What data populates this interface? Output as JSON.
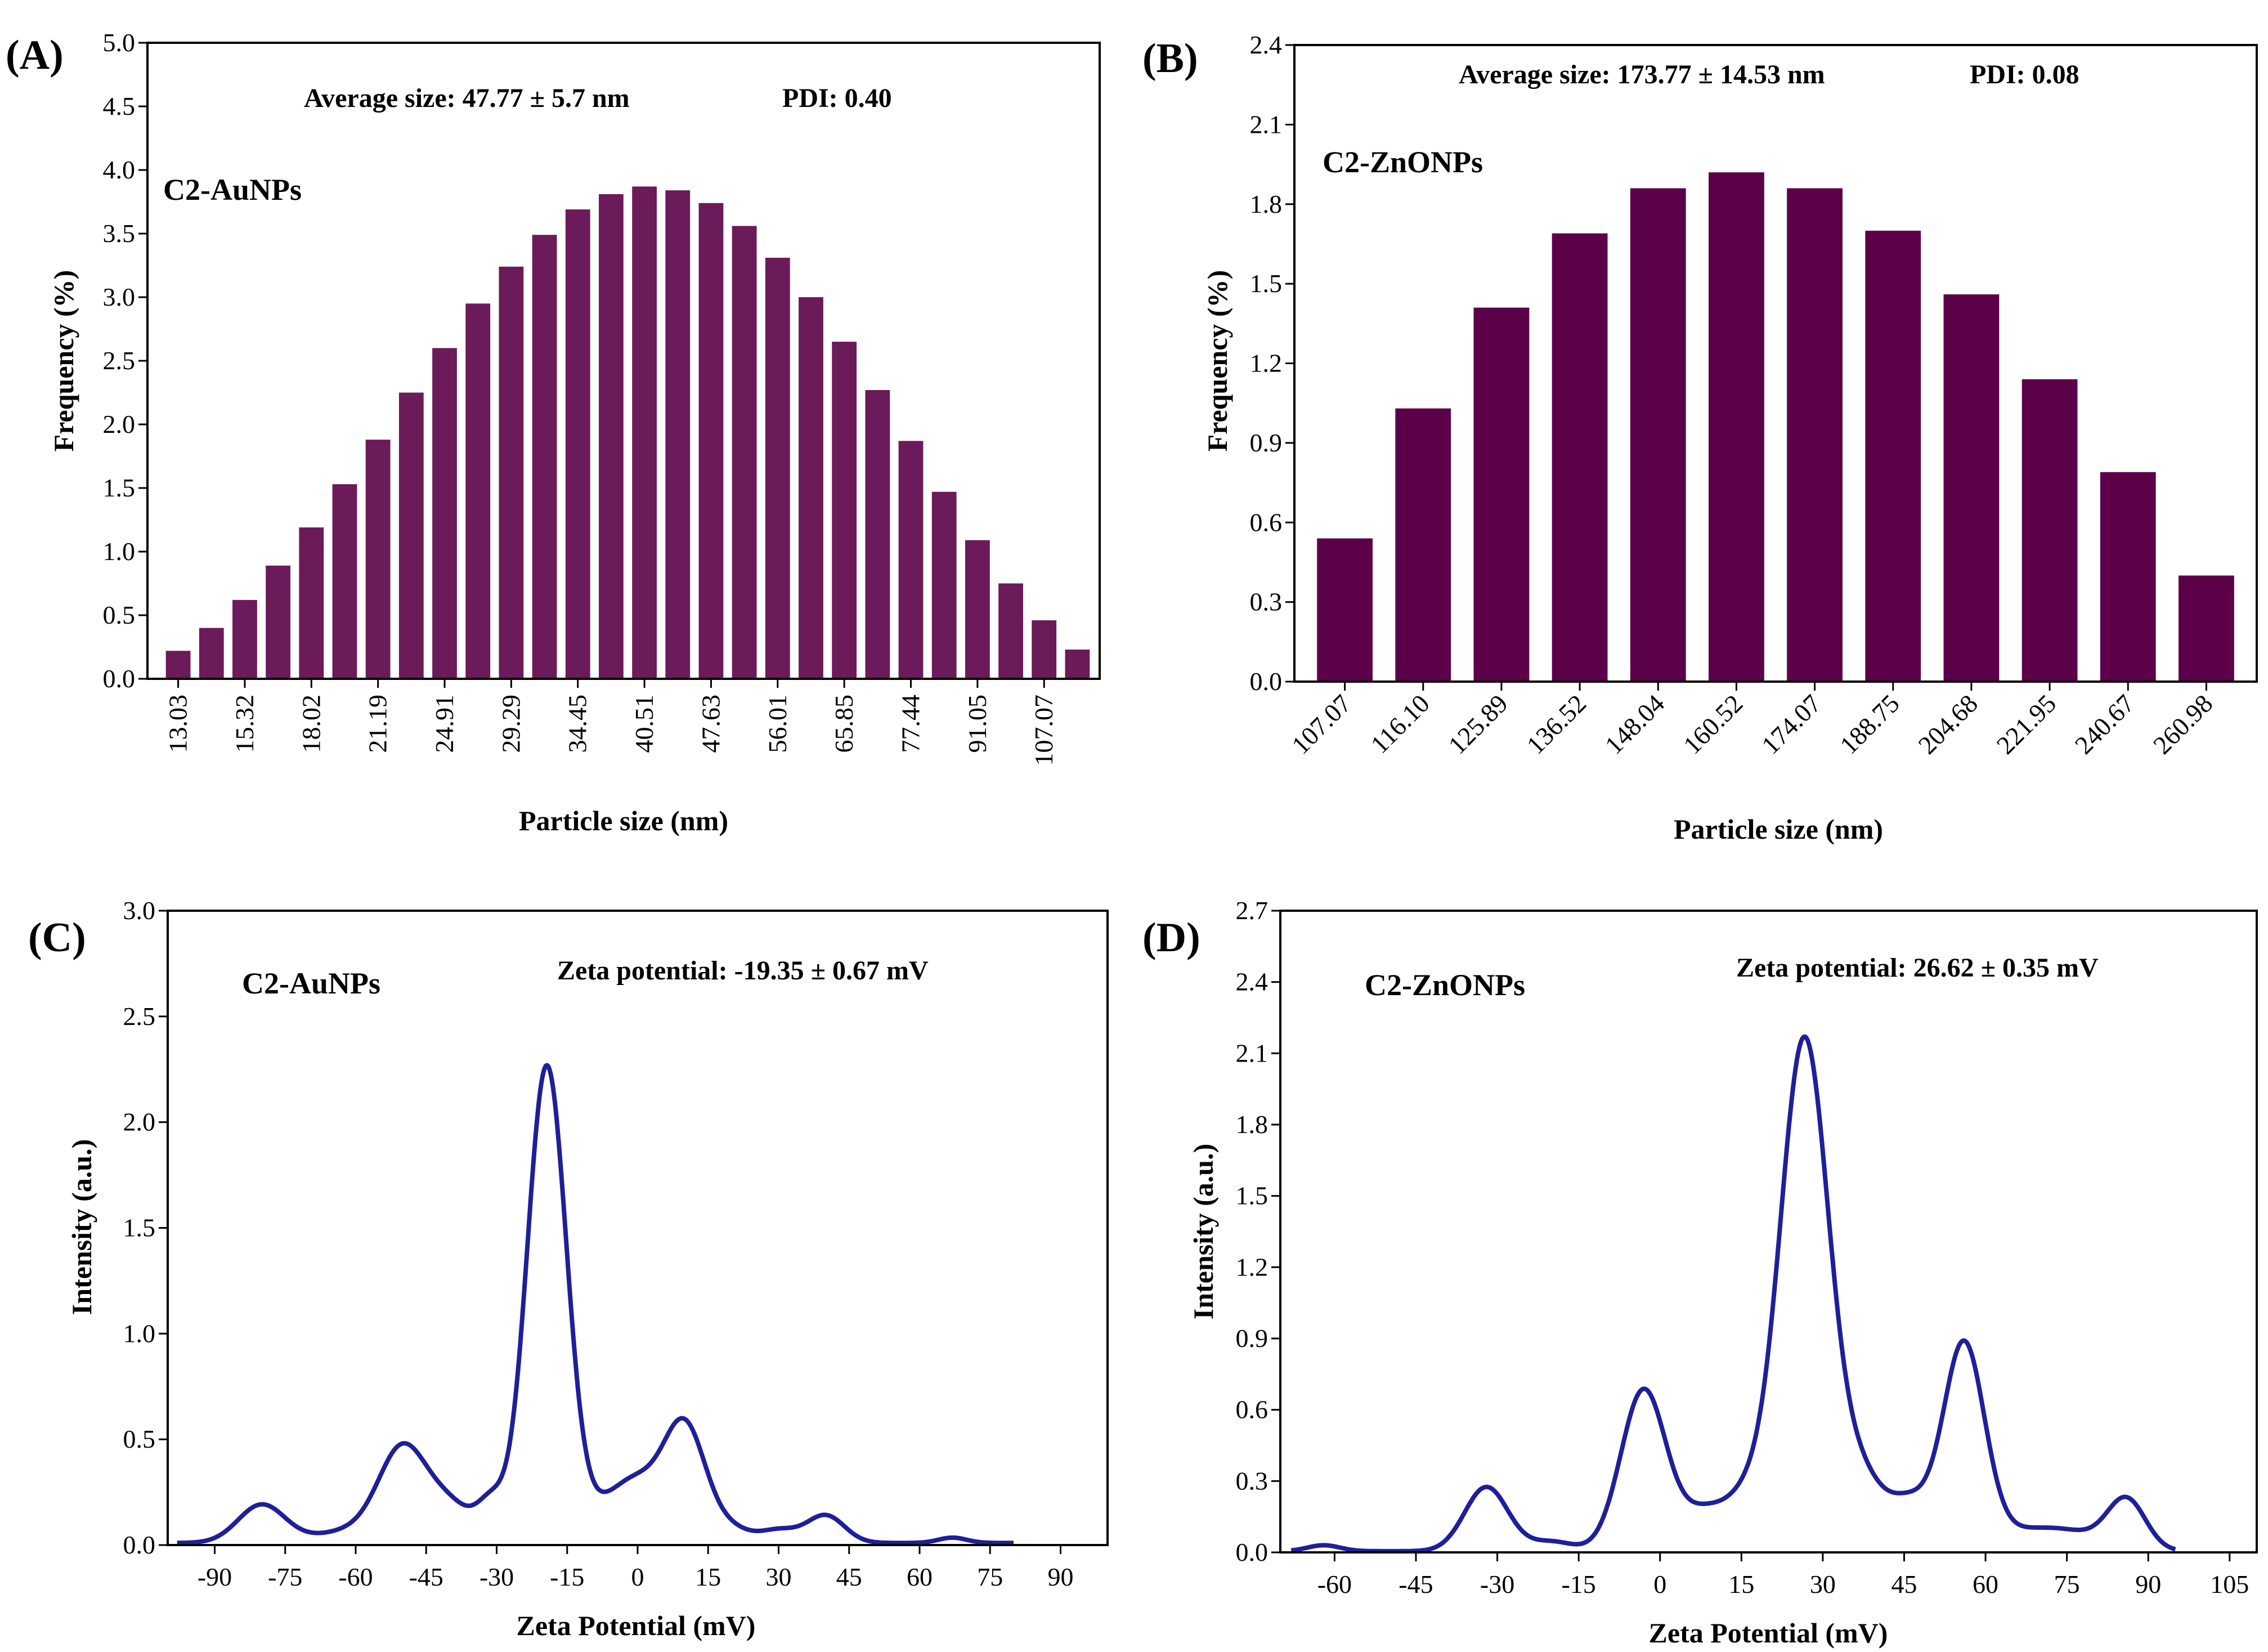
{
  "chart_data": [
    {
      "type": "bar",
      "panel_label": "(A)",
      "sample_label": "C2-AuNPs",
      "annotation": "Average size: 47.77 ± 5.7 nm",
      "pdi": "PDI: 0.40",
      "xlabel": "Particle size (nm)",
      "ylabel": "Frequency (%)",
      "ylim": [
        0,
        5.0
      ],
      "yticks": [
        "0.0",
        "0.5",
        "1.0",
        "1.5",
        "2.0",
        "2.5",
        "3.0",
        "3.5",
        "4.0",
        "4.5",
        "5.0"
      ],
      "xtick_labels": [
        "13.03",
        "15.32",
        "18.02",
        "21.19",
        "24.91",
        "29.29",
        "34.45",
        "40.51",
        "47.63",
        "56.01",
        "65.85",
        "77.44",
        "91.05",
        "107.07"
      ],
      "values": [
        0.22,
        0.4,
        0.62,
        0.89,
        1.19,
        1.53,
        1.88,
        2.25,
        2.6,
        2.95,
        3.24,
        3.49,
        3.69,
        3.81,
        3.87,
        3.84,
        3.74,
        3.56,
        3.31,
        3.0,
        2.65,
        2.27,
        1.87,
        1.47,
        1.09,
        0.75,
        0.46,
        0.23
      ],
      "bar_color": "#6b1a5a"
    },
    {
      "type": "bar",
      "panel_label": "(B)",
      "sample_label": "C2-ZnONPs",
      "annotation": "Average size: 173.77 ± 14.53 nm",
      "pdi": "PDI: 0.08",
      "xlabel": "Particle size (nm)",
      "ylabel": "Frequency (%)",
      "ylim": [
        0,
        2.4
      ],
      "yticks": [
        "0.0",
        "0.3",
        "0.6",
        "0.9",
        "1.2",
        "1.5",
        "1.8",
        "2.1",
        "2.4"
      ],
      "categories": [
        "107.07",
        "116.10",
        "125.89",
        "136.52",
        "148.04",
        "160.52",
        "174.07",
        "188.75",
        "204.68",
        "221.95",
        "240.67",
        "260.98"
      ],
      "values": [
        0.54,
        1.03,
        1.41,
        1.69,
        1.86,
        1.92,
        1.86,
        1.7,
        1.46,
        1.14,
        0.79,
        0.4
      ],
      "bar_color": "#5c0049"
    },
    {
      "type": "line",
      "panel_label": "(C)",
      "sample_label": "C2-AuNPs",
      "annotation": "Zeta potential: -19.35 ± 0.67 mV",
      "xlabel": "Zeta Potential (mV)",
      "ylabel": "Intensity (a.u.)",
      "xlim": [
        -100,
        100
      ],
      "ylim": [
        0,
        3.0
      ],
      "xticks": [
        "-90",
        "-75",
        "-60",
        "-45",
        "-30",
        "-15",
        "0",
        "15",
        "30",
        "45",
        "60",
        "75",
        "90"
      ],
      "yticks": [
        "0.0",
        "0.5",
        "1.0",
        "1.5",
        "2.0",
        "2.5",
        "3.0"
      ],
      "baseline": 0.01,
      "peaks": [
        {
          "center": -80,
          "height": 0.18,
          "width": 5
        },
        {
          "center": -50,
          "height": 0.42,
          "width": 5
        },
        {
          "center": -60,
          "height": 0.06,
          "width": 8
        },
        {
          "center": -40,
          "height": 0.17,
          "width": 5
        },
        {
          "center": -31,
          "height": 0.17,
          "width": 3
        },
        {
          "center": -19.35,
          "height": 2.25,
          "width": 4.2
        },
        {
          "center": -8,
          "height": 0.12,
          "width": 5
        },
        {
          "center": 0,
          "height": 0.25,
          "width": 5
        },
        {
          "center": 10,
          "height": 0.55,
          "width": 4.5
        },
        {
          "center": 20,
          "height": 0.06,
          "width": 4
        },
        {
          "center": 30,
          "height": 0.06,
          "width": 4
        },
        {
          "center": 40,
          "height": 0.13,
          "width": 4
        },
        {
          "center": 67,
          "height": 0.025,
          "width": 3
        }
      ],
      "line_color": "#1f1f9a"
    },
    {
      "type": "line",
      "panel_label": "(D)",
      "sample_label": "C2-ZnONPs",
      "annotation": "Zeta potential: 26.62 ± 0.35 mV",
      "xlabel": "Zeta Potential (mV)",
      "ylabel": "Intensity (a.u.)",
      "xlim": [
        -70,
        110
      ],
      "ylim": [
        0,
        2.7
      ],
      "xticks": [
        "-60",
        "-45",
        "-30",
        "-15",
        "0",
        "15",
        "30",
        "45",
        "60",
        "75",
        "90",
        "105"
      ],
      "yticks": [
        "0.0",
        "0.3",
        "0.6",
        "0.9",
        "1.2",
        "1.5",
        "1.8",
        "2.1",
        "2.4",
        "2.7"
      ],
      "baseline": 0.005,
      "peaks": [
        {
          "center": -62,
          "height": 0.025,
          "width": 3
        },
        {
          "center": -32,
          "height": 0.27,
          "width": 4
        },
        {
          "center": -20,
          "height": 0.04,
          "width": 4
        },
        {
          "center": -3,
          "height": 0.68,
          "width": 4.2
        },
        {
          "center": 8,
          "height": 0.15,
          "width": 4
        },
        {
          "center": 16,
          "height": 0.2,
          "width": 4
        },
        {
          "center": 26.62,
          "height": 2.15,
          "width": 4.5
        },
        {
          "center": 37,
          "height": 0.28,
          "width": 4
        },
        {
          "center": 46,
          "height": 0.2,
          "width": 4
        },
        {
          "center": 56,
          "height": 0.86,
          "width": 3.8
        },
        {
          "center": 66,
          "height": 0.07,
          "width": 6
        },
        {
          "center": 76,
          "height": 0.07,
          "width": 6
        },
        {
          "center": 86,
          "height": 0.21,
          "width": 3.5
        }
      ],
      "line_color": "#1f1f9a"
    }
  ]
}
